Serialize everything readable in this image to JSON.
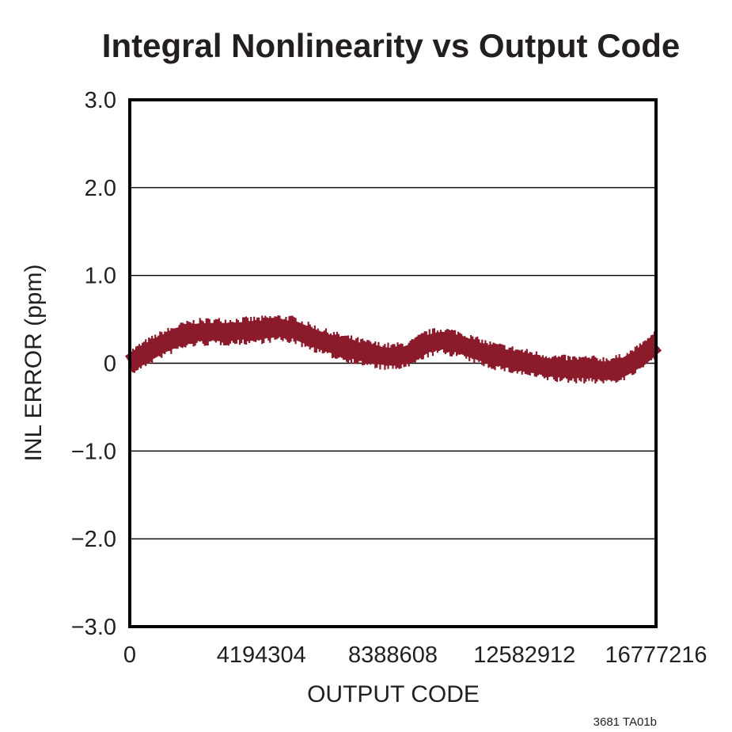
{
  "chart_data": {
    "type": "line",
    "title": "Integral Nonlinearity vs Output Code",
    "xlabel": "OUTPUT CODE",
    "ylabel": "INL ERROR (ppm)",
    "xlim": [
      0,
      16777216
    ],
    "ylim": [
      -3.0,
      3.0
    ],
    "x_ticks": [
      0,
      4194304,
      8388608,
      12582912,
      16777216
    ],
    "x_tick_labels": [
      "0",
      "4194304",
      "8388608",
      "12582912",
      "16777216"
    ],
    "y_ticks": [
      3.0,
      2.0,
      1.0,
      0,
      -1.0,
      -2.0,
      -3.0
    ],
    "y_tick_labels": [
      "3.0",
      "2.0",
      "1.0",
      "0",
      "−1.0",
      "−2.0",
      "−3.0"
    ],
    "grid": true,
    "series": [
      {
        "color": "#8b1a2b",
        "x": [
          0,
          524288,
          1048576,
          1572864,
          2097152,
          2621440,
          3145728,
          3670016,
          4194304,
          4718592,
          5242880,
          5767168,
          6291456,
          6815744,
          7340032,
          7864320,
          8388608,
          8912896,
          9437184,
          9961472,
          10485760,
          11010048,
          11534336,
          12058624,
          12582912,
          13107200,
          13631488,
          14155776,
          14680064,
          15204352,
          15728640,
          16252928,
          16777216
        ],
        "y": [
          0.0,
          0.12,
          0.22,
          0.3,
          0.35,
          0.36,
          0.36,
          0.37,
          0.38,
          0.4,
          0.38,
          0.3,
          0.23,
          0.18,
          0.13,
          0.09,
          0.07,
          0.1,
          0.22,
          0.26,
          0.22,
          0.15,
          0.09,
          0.05,
          0.01,
          -0.03,
          -0.06,
          -0.07,
          -0.07,
          -0.08,
          -0.05,
          0.06,
          0.22
        ]
      }
    ]
  },
  "footnote": "3681 TA01b"
}
